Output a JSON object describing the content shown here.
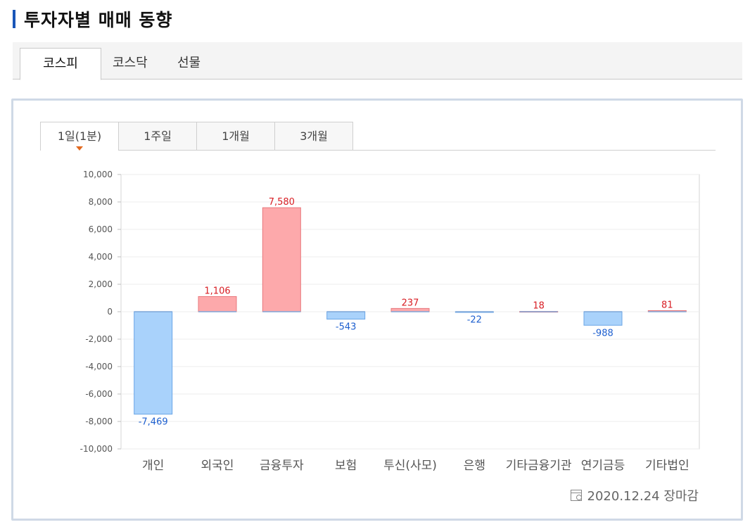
{
  "page": {
    "title": "투자자별 매매 동향"
  },
  "market_tabs": [
    {
      "label": "코스피",
      "active": true
    },
    {
      "label": "코스닥",
      "active": false
    },
    {
      "label": "선물",
      "active": false
    }
  ],
  "period_tabs": [
    {
      "label": "1일(1분)",
      "active": true
    },
    {
      "label": "1주일",
      "active": false
    },
    {
      "label": "1개월",
      "active": false
    },
    {
      "label": "3개월",
      "active": false
    }
  ],
  "footer": {
    "date_text": "2020.12.24 장마감",
    "icon": "calendar-clock-icon"
  },
  "colors": {
    "positive_fill": "#fda9ab",
    "positive_stroke": "#e8797d",
    "positive_label": "#d81d23",
    "negative_fill": "#a9d2fb",
    "negative_stroke": "#6aa6e6",
    "negative_label": "#1d5fcf",
    "accent": "#1a56b8"
  },
  "chart_data": {
    "type": "bar",
    "categories": [
      "개인",
      "외국인",
      "금융투자",
      "보험",
      "투신(사모)",
      "은행",
      "기타금융기관",
      "연기금등",
      "기타법인"
    ],
    "values": [
      -7469,
      1106,
      7580,
      -543,
      237,
      -22,
      18,
      -988,
      81
    ],
    "data_labels": [
      "-7,469",
      "1,106",
      "7,580",
      "-543",
      "237",
      "-22",
      "18",
      "-988",
      "81"
    ],
    "ylim": [
      -10000,
      10000
    ],
    "yticks": [
      10000,
      8000,
      6000,
      4000,
      2000,
      0,
      -2000,
      -4000,
      -6000,
      -8000,
      -10000
    ],
    "ytick_labels": [
      "10,000",
      "8,000",
      "6,000",
      "4,000",
      "2,000",
      "0",
      "-2,000",
      "-4,000",
      "-6,000",
      "-8,000",
      "-10,000"
    ],
    "grid": true,
    "legend": "none"
  }
}
